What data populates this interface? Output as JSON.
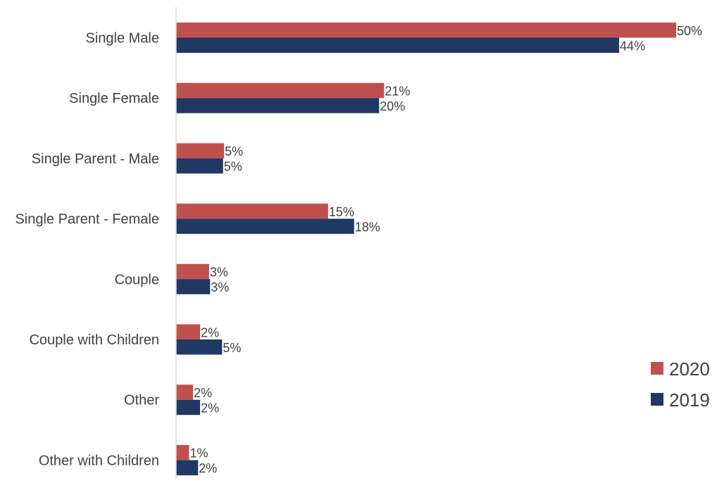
{
  "chart_data": {
    "type": "bar",
    "orientation": "horizontal",
    "categories": [
      "Single Male",
      "Single Female",
      "Single Parent - Male",
      "Single Parent - Female",
      "Couple",
      "Couple with Children",
      "Other",
      "Other with Children"
    ],
    "series": [
      {
        "name": "2020",
        "color": "#c0504d",
        "values": [
          50.0,
          20.8,
          4.8,
          15.2,
          3.3,
          2.4,
          1.7,
          1.3
        ],
        "labels": [
          "50%",
          "21%",
          "5%",
          "15%",
          "3%",
          "2%",
          "2%",
          "1%"
        ]
      },
      {
        "name": "2019",
        "color": "#1f3864",
        "values": [
          44.3,
          20.3,
          4.7,
          17.8,
          3.4,
          4.6,
          2.4,
          2.2
        ],
        "labels": [
          "44%",
          "20%",
          "5%",
          "18%",
          "3%",
          "5%",
          "2%",
          "2%"
        ]
      }
    ],
    "xlim": [
      0,
      50
    ],
    "grid": false,
    "legend_position": "bottom-right",
    "axis_color": "#d9d9d9"
  }
}
